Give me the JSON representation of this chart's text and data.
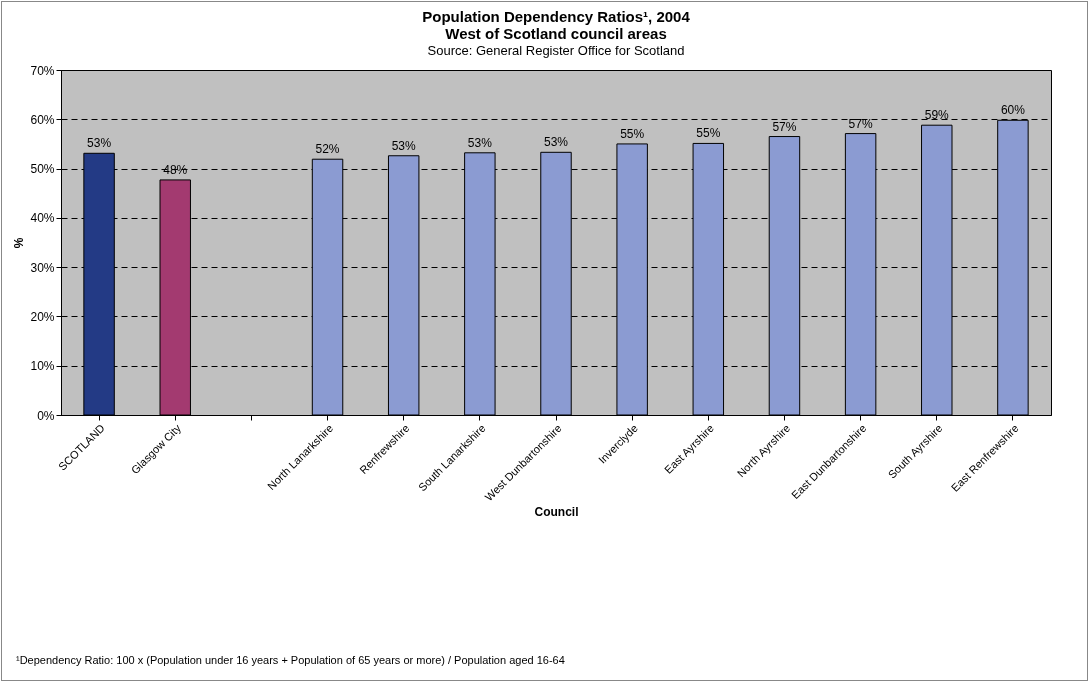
{
  "chart_data": {
    "type": "bar",
    "title": "Population Dependency Ratios¹, 2004",
    "subtitle": "West of Scotland council areas",
    "annotations": [
      "Source: General Register Office for Scotland",
      "¹Dependency Ratio: 100 x (Population under 16 years + Population of 65 years or more) / Population aged 16-64"
    ],
    "xlabel": "Council",
    "ylabel": "%",
    "categories": [
      "SCOTLAND",
      "Glasgow City",
      null,
      "North Lanarkshire",
      "Renfrewshire",
      "South Lanarkshire",
      "West Dunbartonshire",
      "Inverclyde",
      "East Ayrshire",
      "North Ayrshire",
      "East Dunbartonshire",
      "South Ayrshire",
      "East Renfrewshire"
    ],
    "values": [
      53.1,
      47.7,
      null,
      51.9,
      52.6,
      53.2,
      53.3,
      55.0,
      55.1,
      56.5,
      57.1,
      58.8,
      59.8
    ],
    "value_labels": [
      "53%",
      "48%",
      null,
      "52%",
      "53%",
      "53%",
      "53%",
      "55%",
      "55%",
      "57%",
      "57%",
      "59%",
      "60%"
    ],
    "colors": [
      "#233a85",
      "#a33a70",
      null,
      "#8b9bd2",
      "#8b9bd2",
      "#8b9bd2",
      "#8b9bd2",
      "#8b9bd2",
      "#8b9bd2",
      "#8b9bd2",
      "#8b9bd2",
      "#8b9bd2",
      "#8b9bd2"
    ],
    "ylim": [
      0,
      70
    ],
    "yticks": [
      {
        "value": 0,
        "label": "0%"
      },
      {
        "value": 10,
        "label": "10%"
      },
      {
        "value": 20,
        "label": "20%"
      },
      {
        "value": 30,
        "label": "30%"
      },
      {
        "value": 40,
        "label": "40%"
      },
      {
        "value": 50,
        "label": "50%"
      },
      {
        "value": 60,
        "label": "60%"
      },
      {
        "value": 70,
        "label": "70%"
      }
    ],
    "grid": "y"
  }
}
